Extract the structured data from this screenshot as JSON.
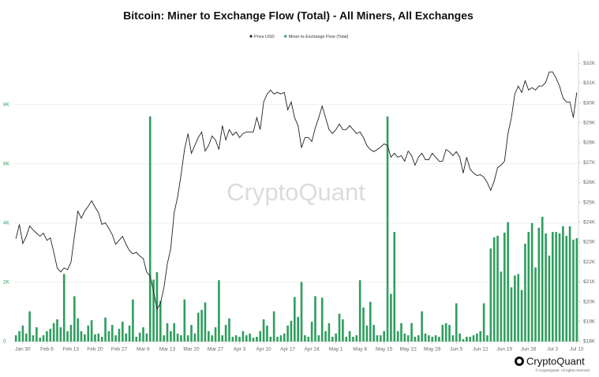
{
  "chart_data": {
    "type": "combo",
    "title": "Bitcoin: Miner to Exchange Flow (Total) - All Miners, All Exchanges",
    "watermark": "CryptoQuant",
    "logo": "CryptoQuant",
    "copyright": "© CryptoQuant. All rights reserved.",
    "categories": [
      null,
      null,
      "Jan 30",
      null,
      null,
      null,
      null,
      null,
      null,
      "Feb 6",
      null,
      null,
      null,
      null,
      null,
      null,
      "Feb 13",
      null,
      null,
      null,
      null,
      null,
      null,
      "Feb 20",
      null,
      null,
      null,
      null,
      null,
      null,
      "Feb 27",
      null,
      null,
      null,
      null,
      null,
      null,
      "Mar 6",
      null,
      null,
      null,
      null,
      null,
      null,
      "Mar 13",
      null,
      null,
      null,
      null,
      null,
      null,
      "Mar 20",
      null,
      null,
      null,
      null,
      null,
      null,
      "Mar 27",
      null,
      null,
      null,
      null,
      null,
      null,
      "Apr 3",
      null,
      null,
      null,
      null,
      null,
      null,
      "Apr 10",
      null,
      null,
      null,
      null,
      null,
      null,
      "Apr 17",
      null,
      null,
      null,
      null,
      null,
      null,
      "Apr 24",
      null,
      null,
      null,
      null,
      null,
      null,
      "May 1",
      null,
      null,
      null,
      null,
      null,
      null,
      "May 8",
      null,
      null,
      null,
      null,
      null,
      null,
      "May 15",
      null,
      null,
      null,
      null,
      null,
      null,
      "May 22",
      null,
      null,
      null,
      null,
      null,
      null,
      "May 29",
      null,
      null,
      null,
      null,
      null,
      null,
      "Jun 5",
      null,
      null,
      null,
      null,
      null,
      null,
      "Jun 12",
      null,
      null,
      null,
      null,
      null,
      null,
      "Jun 19",
      null,
      null,
      null,
      null,
      null,
      null,
      "Jun 26",
      null,
      null,
      null,
      null,
      null,
      null,
      "Jul 3",
      null,
      null,
      null,
      null,
      null,
      null,
      "Jul 10"
    ],
    "series": [
      {
        "name": "Price USD",
        "type": "line",
        "axis": "y2",
        "color": "#222222",
        "values": [
          23170,
          23890,
          22930,
          23290,
          23810,
          23610,
          23450,
          23290,
          23450,
          23090,
          23210,
          22490,
          21700,
          21500,
          21700,
          21620,
          21980,
          23290,
          24560,
          24200,
          24560,
          24800,
          25080,
          24760,
          24480,
          23890,
          23970,
          23690,
          23370,
          22890,
          23090,
          23290,
          22890,
          22570,
          22410,
          22490,
          22300,
          22180,
          21500,
          21300,
          20510,
          19630,
          19910,
          20700,
          21900,
          22690,
          24480,
          25280,
          26390,
          27660,
          28460,
          27470,
          27860,
          28260,
          28540,
          27580,
          27860,
          28340,
          28140,
          27660,
          28860,
          28140,
          28660,
          28380,
          28540,
          28260,
          28460,
          28540,
          28540,
          28540,
          29260,
          28660,
          30050,
          30450,
          30650,
          30450,
          30530,
          30450,
          30530,
          29650,
          30050,
          29260,
          28860,
          27740,
          28260,
          28260,
          28060,
          28740,
          29260,
          29850,
          29260,
          28660,
          28460,
          28660,
          28940,
          28660,
          28660,
          28860,
          28660,
          28460,
          28540,
          28260,
          27860,
          27660,
          27550,
          27660,
          27780,
          27940,
          27860,
          27270,
          27470,
          27270,
          27350,
          27070,
          27580,
          27350,
          26870,
          27270,
          27470,
          27150,
          27150,
          27470,
          27270,
          27070,
          27070,
          27660,
          27550,
          27350,
          27550,
          27270,
          26470,
          27270,
          26670,
          26470,
          26350,
          26390,
          26270,
          25990,
          25600,
          26070,
          26750,
          26870,
          27070,
          28460,
          29260,
          30450,
          30850,
          30530,
          31120,
          30650,
          30770,
          30650,
          30850,
          30850,
          31040,
          31560,
          31560,
          31240,
          30850,
          30250,
          30050,
          30050,
          29260,
          30530
        ]
      },
      {
        "name": "Miner to Exchange Flow (Total)",
        "type": "bar",
        "axis": "y",
        "color": "#2f9e5e",
        "values": [
          210,
          350,
          540,
          270,
          1020,
          210,
          480,
          130,
          210,
          350,
          430,
          620,
          750,
          480,
          2280,
          350,
          560,
          1530,
          780,
          350,
          240,
          540,
          720,
          240,
          270,
          160,
          810,
          350,
          560,
          210,
          430,
          670,
          270,
          540,
          1420,
          160,
          300,
          480,
          270,
          7600,
          2090,
          2340,
          1370,
          210,
          620,
          350,
          620,
          270,
          210,
          1420,
          210,
          560,
          270,
          970,
          1070,
          1320,
          350,
          210,
          480,
          2070,
          210,
          560,
          780,
          160,
          210,
          160,
          350,
          210,
          270,
          130,
          160,
          350,
          750,
          540,
          160,
          1020,
          160,
          210,
          270,
          540,
          700,
          1500,
          830,
          2010,
          210,
          160,
          670,
          1530,
          210,
          1480,
          350,
          620,
          160,
          270,
          940,
          750,
          160,
          350,
          160,
          210,
          2070,
          1150,
          540,
          1340,
          560,
          210,
          210,
          350,
          7600,
          1610,
          3700,
          350,
          620,
          270,
          210,
          620,
          160,
          210,
          1020,
          270,
          210,
          160,
          210,
          160,
          560,
          620,
          560,
          210,
          1290,
          270,
          80,
          160,
          160,
          210,
          270,
          350,
          1290,
          210,
          3140,
          3520,
          3570,
          2360,
          3680,
          4030,
          1830,
          2230,
          2280,
          1740,
          3300,
          3700,
          4000,
          2500,
          3840,
          4210,
          3650,
          2900,
          3700,
          3700,
          3650,
          3890,
          3570,
          3890,
          3440,
          3490
        ]
      }
    ],
    "ylim": [
      0,
      9800
    ],
    "yticks": [
      0,
      {
        "value": 2000,
        "label": "2K"
      },
      {
        "value": 4000,
        "label": "4K"
      },
      {
        "value": 6000,
        "label": "6K"
      },
      {
        "value": 8000,
        "label": "8K"
      }
    ],
    "y2lim": [
      18000,
      32600
    ],
    "y2ticks": [
      {
        "value": 18000,
        "label": "$18K"
      },
      {
        "value": 19000,
        "label": "$19K"
      },
      {
        "value": 20000,
        "label": "$20K"
      },
      {
        "value": 21000,
        "label": "$21K"
      },
      {
        "value": 22000,
        "label": "$22K"
      },
      {
        "value": 23000,
        "label": "$23K"
      },
      {
        "value": 24000,
        "label": "$24K"
      },
      {
        "value": 25000,
        "label": "$25K"
      },
      {
        "value": 26000,
        "label": "$26K"
      },
      {
        "value": 27000,
        "label": "$27K"
      },
      {
        "value": 28000,
        "label": "$28K"
      },
      {
        "value": 29000,
        "label": "$29K"
      },
      {
        "value": 30000,
        "label": "$30K"
      },
      {
        "value": 31000,
        "label": "$31K"
      },
      {
        "value": 32000,
        "label": "$32K"
      }
    ],
    "grid": true,
    "legend": "top"
  }
}
